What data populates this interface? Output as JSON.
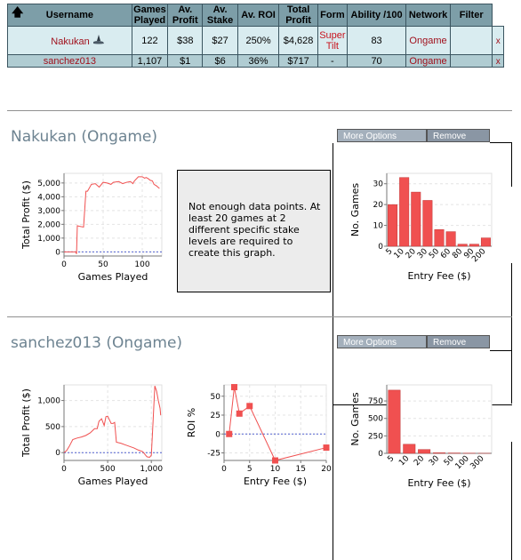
{
  "table": {
    "headers": [
      "Username",
      "Games Played",
      "Av. Profit",
      "Av. Stake",
      "Av. ROI",
      "Total Profit",
      "Form",
      "Ability /100",
      "Network",
      "Filter"
    ],
    "rows": [
      {
        "username": "Nakukan",
        "games": "122",
        "profit": "$38",
        "stake": "$27",
        "roi": "250%",
        "total": "$4,628",
        "form": "Super Tilt",
        "ability": "83",
        "network": "Ongame",
        "filter": "",
        "remove": "x"
      },
      {
        "username": "sanchez013",
        "games": "1,107",
        "profit": "$1",
        "stake": "$6",
        "roi": "36%",
        "total": "$717",
        "form": "-",
        "ability": "70",
        "network": "Ongame",
        "filter": "",
        "remove": "x"
      }
    ]
  },
  "icons": {
    "sort": "up-arrow-icon",
    "player_status": "shark-icon"
  },
  "sections": [
    {
      "title": "Nakukan (Ongame)",
      "more": "More Options",
      "remove": "Remove",
      "message": "Not enough data points. At least 20 games at 2 different specific stake levels are required to create this graph."
    },
    {
      "title": "sanchez013 (Ongame)",
      "more": "More Options",
      "remove": "Remove"
    }
  ],
  "colors": {
    "header_bg": "#7d9ea8",
    "row1_bg": "#d9ecf0",
    "row2_bg": "#b0ccd2",
    "accent_red": "#f05050",
    "link_red": "#a0101c",
    "title_grey": "#6d8391"
  },
  "chart_data": [
    {
      "id": "nakukan-profit",
      "type": "line",
      "xlabel": "Games Played",
      "ylabel": "Total Profit ($)",
      "xlim": [
        0,
        125
      ],
      "ylim": [
        -300,
        5700
      ],
      "xticks": [
        0,
        50,
        100
      ],
      "xtick_labels": [
        "0",
        "50",
        "100"
      ],
      "yticks": [
        0,
        1000,
        2000,
        3000,
        4000,
        5000
      ],
      "ytick_labels": [
        "0",
        "1,000",
        "2,000",
        "3,000",
        "4,000",
        "5,000"
      ],
      "x": [
        0,
        1,
        3,
        5,
        8,
        10,
        12,
        14,
        15,
        16,
        17,
        20,
        25,
        28,
        30,
        35,
        40,
        45,
        50,
        55,
        60,
        63,
        70,
        75,
        80,
        85,
        88,
        90,
        95,
        100,
        103,
        105,
        108,
        110,
        113,
        115,
        118,
        120,
        122
      ],
      "y": [
        0,
        0,
        0,
        0,
        0,
        0,
        0,
        0,
        0,
        -150,
        1900,
        1850,
        1800,
        4400,
        4400,
        4900,
        4950,
        4700,
        5050,
        5000,
        4900,
        5050,
        5100,
        4950,
        5050,
        5100,
        4950,
        5150,
        5450,
        5450,
        5350,
        5400,
        5300,
        5200,
        5150,
        4900,
        4800,
        4700,
        4600
      ]
    },
    {
      "id": "nakukan-entry",
      "type": "bar",
      "xlabel": "Entry Fee ($)",
      "ylabel": "No. Games",
      "categories": [
        "5",
        "10",
        "20",
        "30",
        "50",
        "60",
        "80",
        "90",
        "200"
      ],
      "values": [
        20,
        33,
        26,
        22,
        8,
        7,
        1,
        1,
        4
      ],
      "ylim": [
        0,
        35
      ],
      "yticks": [
        0,
        10,
        20,
        30
      ],
      "ytick_labels": [
        "0",
        "10",
        "20",
        "30"
      ]
    },
    {
      "id": "sanchez-profit",
      "type": "line",
      "xlabel": "Games Played",
      "ylabel": "Total Profit ($)",
      "xlim": [
        0,
        1120
      ],
      "ylim": [
        -150,
        1300
      ],
      "xticks": [
        0,
        500,
        1000
      ],
      "xtick_labels": [
        "0",
        "500",
        "1,000"
      ],
      "yticks": [
        0,
        500,
        1000
      ],
      "ytick_labels": [
        "0",
        "500",
        "1,000"
      ],
      "x": [
        0,
        30,
        60,
        100,
        150,
        200,
        250,
        300,
        350,
        380,
        400,
        430,
        460,
        480,
        500,
        540,
        560,
        580,
        600,
        650,
        700,
        750,
        800,
        850,
        900,
        950,
        980,
        1000,
        1020,
        1040,
        1060,
        1080,
        1100,
        1107
      ],
      "y": [
        0,
        40,
        120,
        250,
        280,
        300,
        330,
        380,
        460,
        460,
        600,
        650,
        520,
        690,
        700,
        560,
        560,
        580,
        200,
        180,
        150,
        120,
        90,
        50,
        20,
        -80,
        -90,
        -50,
        600,
        1280,
        1180,
        1000,
        850,
        717
      ]
    },
    {
      "id": "sanchez-roi",
      "type": "scatter",
      "xlabel": "Entry Fee ($)",
      "ylabel": "ROI %",
      "xlim": [
        0,
        20
      ],
      "ylim": [
        -35,
        65
      ],
      "xticks": [
        0,
        5,
        10,
        15,
        20
      ],
      "xtick_labels": [
        "0",
        "5",
        "10",
        "15",
        "20"
      ],
      "yticks": [
        -25,
        0,
        25,
        50
      ],
      "ytick_labels": [
        "-25",
        "0",
        "25",
        "50"
      ],
      "x": [
        1,
        2,
        3,
        5,
        10,
        20
      ],
      "y": [
        0,
        62,
        27,
        37,
        -35,
        -18
      ]
    },
    {
      "id": "sanchez-entry",
      "type": "bar",
      "xlabel": "Entry Fee ($)",
      "ylabel": "No. Games",
      "categories": [
        "5",
        "10",
        "20",
        "30",
        "50",
        "100",
        "300"
      ],
      "values": [
        905,
        130,
        55,
        8,
        5,
        3,
        1
      ],
      "ylim": [
        0,
        980
      ],
      "yticks": [
        0,
        250,
        500,
        750
      ],
      "ytick_labels": [
        "0",
        "250",
        "500",
        "750"
      ]
    }
  ]
}
